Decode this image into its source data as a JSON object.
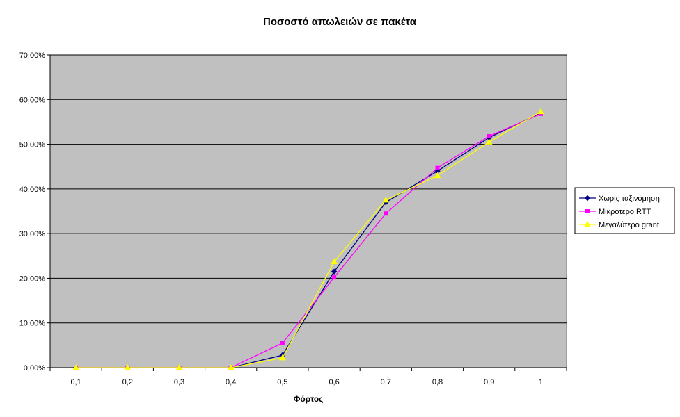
{
  "chart_data": {
    "type": "line",
    "title": "Ποσοστό απωλειών σε πακέτα",
    "xlabel": "Φόρτος",
    "ylabel": "",
    "categories": [
      "0,1",
      "0,2",
      "0,3",
      "0,4",
      "0,5",
      "0,6",
      "0,7",
      "0,8",
      "0,9",
      "1"
    ],
    "y_ticks": [
      "0,00%",
      "10,00%",
      "20,00%",
      "30,00%",
      "40,00%",
      "50,00%",
      "60,00%",
      "70,00%"
    ],
    "ylim": [
      0,
      70
    ],
    "grid": true,
    "legend_position": "right",
    "plot_background": "#c0c0c0",
    "series": [
      {
        "name": "Χωρίς ταξινόμηση",
        "color": "#000080",
        "marker": "diamond",
        "values": [
          0,
          0,
          0,
          0,
          2.8,
          21.5,
          37.0,
          44.0,
          51.5,
          57.0
        ]
      },
      {
        "name": "Μικρότερο RTT",
        "color": "#ff00ff",
        "marker": "square",
        "values": [
          0,
          0,
          0,
          0,
          5.5,
          20.2,
          34.5,
          44.7,
          51.8,
          56.8
        ]
      },
      {
        "name": "Μεγαλύτερο grant",
        "color": "#ffff00",
        "marker": "triangle",
        "values": [
          0,
          0,
          0,
          0,
          2.2,
          23.7,
          37.5,
          43.0,
          50.5,
          57.3
        ]
      }
    ]
  }
}
